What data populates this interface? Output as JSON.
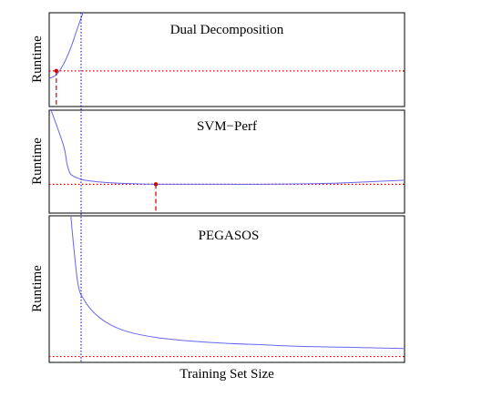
{
  "xlabel": "Training Set Size",
  "colors": {
    "curve": "#6666ee",
    "reference": "#cc0000",
    "vertical": "#0000cc",
    "frame": "#000000"
  },
  "chart_data": [
    {
      "type": "line",
      "title": "Dual Decomposition",
      "ylabel": "Runtime",
      "curve": {
        "x": [
          0.0,
          0.02,
          0.04,
          0.06,
          0.08,
          0.1
        ],
        "y": [
          0.3,
          0.34,
          0.45,
          0.62,
          0.84,
          1.05
        ]
      },
      "reference_level": 0.38,
      "marked_point": {
        "x": 0.02,
        "y": 0.38
      },
      "xlim": [
        0,
        1
      ],
      "ylim": [
        0,
        1
      ]
    },
    {
      "type": "line",
      "title": "SVM−Perf",
      "ylabel": "Runtime",
      "curve": {
        "x": [
          0.0,
          0.04,
          0.05,
          0.06,
          0.08,
          0.1,
          0.15,
          0.2,
          0.3,
          0.4,
          0.6,
          0.8,
          1.0
        ],
        "y": [
          1.05,
          0.66,
          0.48,
          0.38,
          0.34,
          0.32,
          0.3,
          0.29,
          0.28,
          0.28,
          0.28,
          0.29,
          0.32
        ]
      },
      "reference_level": 0.28,
      "marked_point": {
        "x": 0.3,
        "y": 0.28
      },
      "xlim": [
        0,
        1
      ],
      "ylim": [
        0,
        1
      ]
    },
    {
      "type": "line",
      "title": "PEGASOS",
      "ylabel": "Runtime",
      "curve": {
        "x": [
          0.06,
          0.08,
          0.1,
          0.13,
          0.17,
          0.22,
          0.3,
          0.4,
          0.5,
          0.6,
          0.7,
          0.8,
          0.9,
          1.0
        ],
        "y": [
          1.02,
          0.55,
          0.42,
          0.33,
          0.26,
          0.21,
          0.17,
          0.145,
          0.13,
          0.12,
          0.11,
          0.105,
          0.1,
          0.095
        ]
      },
      "reference_level": 0.04,
      "xlim": [
        0,
        1
      ],
      "ylim": [
        0,
        1
      ]
    }
  ]
}
